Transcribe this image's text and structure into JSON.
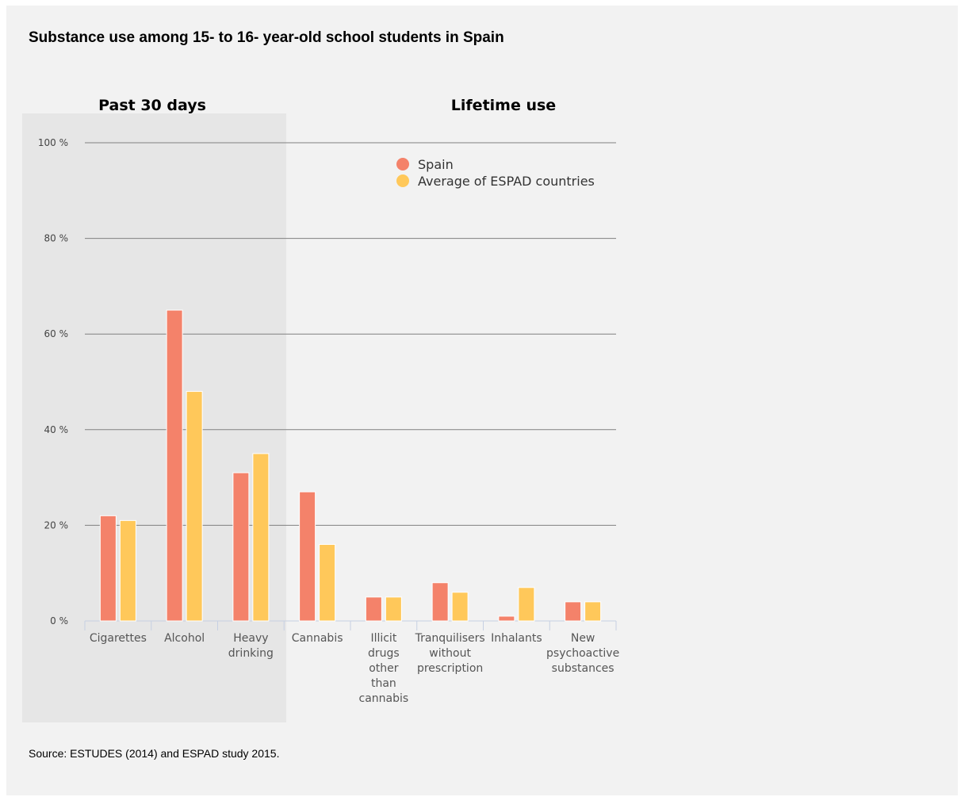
{
  "title": "Substance use among 15- to 16- year-old school students in Spain",
  "source": "Source: ESTUDES (2014) and ESPAD study 2015.",
  "colors": {
    "spain": "#f4826a",
    "espad": "#ffc85a",
    "shade": "#e6e6e6",
    "grid": "#808080",
    "axis": "#c6d0e3"
  },
  "chart_data": {
    "type": "bar",
    "section_labels": [
      "Past 30 days",
      "Lifetime use"
    ],
    "categories": [
      [
        "Cigarettes"
      ],
      [
        "Alcohol"
      ],
      [
        "Heavy",
        "drinking"
      ],
      [
        "Cannabis"
      ],
      [
        "Illicit",
        "drugs",
        "other",
        "than",
        "cannabis"
      ],
      [
        "Tranquilisers",
        "without",
        "prescription"
      ],
      [
        "Inhalants"
      ],
      [
        "New",
        "psychoactive",
        "substances"
      ]
    ],
    "series": [
      {
        "name": "Spain",
        "values": [
          22,
          65,
          31,
          27,
          5,
          8,
          1,
          4
        ]
      },
      {
        "name": "Average of ESPAD countries",
        "values": [
          21,
          48,
          35,
          16,
          5,
          6,
          7,
          4
        ]
      }
    ],
    "y_ticks": [
      "0 %",
      "20 %",
      "40 %",
      "60 %",
      "80 %",
      "100 %"
    ],
    "ylim": [
      0,
      100
    ],
    "grid": true,
    "legend_position": "top-right"
  }
}
